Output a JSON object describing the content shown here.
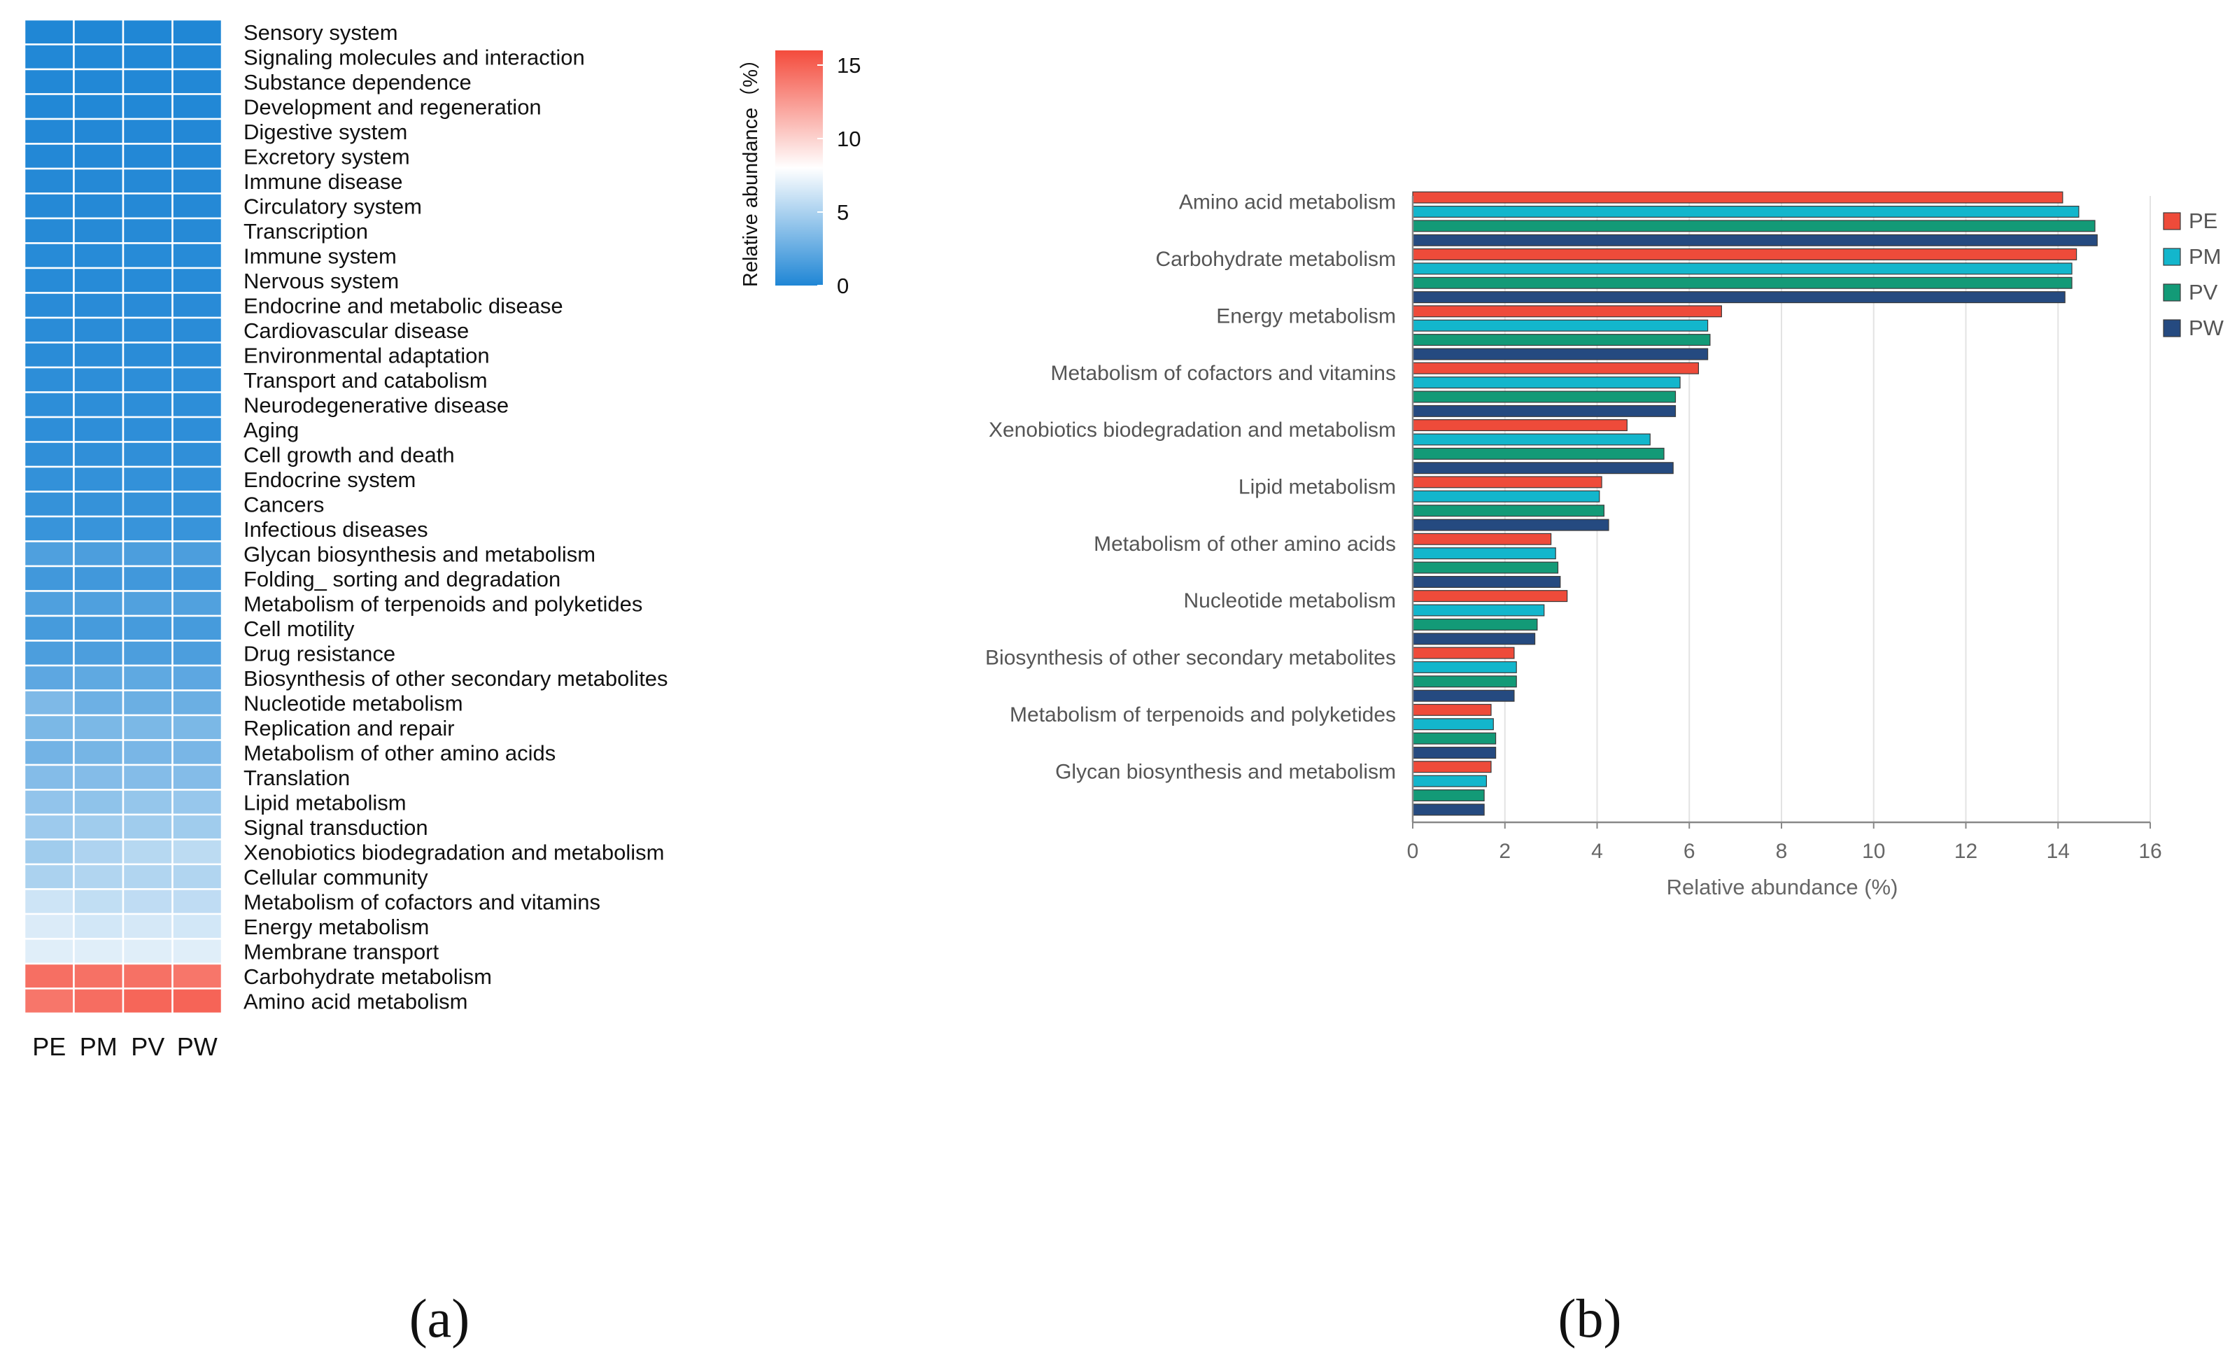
{
  "panels": {
    "a_label": "(a)",
    "b_label": "(b)"
  },
  "chart_data": [
    {
      "type": "heatmap",
      "columns": [
        "PE",
        "PM",
        "PV",
        "PW"
      ],
      "rows": [
        "Sensory system",
        "Signaling molecules and interaction",
        "Substance dependence",
        "Development and regeneration",
        "Digestive system",
        "Excretory system",
        "Immune disease",
        "Circulatory system",
        "Transcription",
        "Immune system",
        "Nervous system",
        "Endocrine and metabolic disease",
        "Cardiovascular disease",
        "Environmental adaptation",
        "Transport and catabolism",
        "Neurodegenerative disease",
        "Aging",
        "Cell growth and death",
        "Endocrine system",
        "Cancers",
        "Infectious diseases",
        "Glycan biosynthesis and metabolism",
        "Folding_ sorting and degradation",
        "Metabolism of terpenoids and polyketides",
        "Cell motility",
        "Drug resistance",
        "Biosynthesis of other secondary metabolites",
        "Nucleotide metabolism",
        "Replication and repair",
        "Metabolism of other amino acids",
        "Translation",
        "Lipid metabolism",
        "Signal transduction",
        "Xenobiotics biodegradation and metabolism",
        "Cellular community",
        "Metabolism of cofactors and vitamins",
        "Energy metabolism",
        "Membrane transport",
        "Carbohydrate metabolism",
        "Amino acid metabolism"
      ],
      "values": [
        [
          0.05,
          0.05,
          0.05,
          0.05
        ],
        [
          0.1,
          0.1,
          0.1,
          0.1
        ],
        [
          0.1,
          0.1,
          0.1,
          0.1
        ],
        [
          0.1,
          0.1,
          0.1,
          0.1
        ],
        [
          0.15,
          0.15,
          0.15,
          0.15
        ],
        [
          0.15,
          0.15,
          0.15,
          0.15
        ],
        [
          0.2,
          0.2,
          0.2,
          0.2
        ],
        [
          0.2,
          0.2,
          0.2,
          0.2
        ],
        [
          0.25,
          0.25,
          0.25,
          0.25
        ],
        [
          0.3,
          0.3,
          0.3,
          0.3
        ],
        [
          0.3,
          0.3,
          0.3,
          0.3
        ],
        [
          0.35,
          0.35,
          0.35,
          0.35
        ],
        [
          0.4,
          0.4,
          0.4,
          0.4
        ],
        [
          0.4,
          0.4,
          0.4,
          0.4
        ],
        [
          0.5,
          0.5,
          0.5,
          0.5
        ],
        [
          0.5,
          0.5,
          0.5,
          0.5
        ],
        [
          0.55,
          0.55,
          0.55,
          0.55
        ],
        [
          0.6,
          0.6,
          0.6,
          0.6
        ],
        [
          0.7,
          0.7,
          0.7,
          0.7
        ],
        [
          0.8,
          0.8,
          0.8,
          0.8
        ],
        [
          0.9,
          0.9,
          0.9,
          0.9
        ],
        [
          1.7,
          1.6,
          1.6,
          1.6
        ],
        [
          1.2,
          1.2,
          1.2,
          1.2
        ],
        [
          1.7,
          1.7,
          1.8,
          1.8
        ],
        [
          1.4,
          1.4,
          1.4,
          1.4
        ],
        [
          1.6,
          1.6,
          1.6,
          1.6
        ],
        [
          2.2,
          2.3,
          2.3,
          2.2
        ],
        [
          3.4,
          2.8,
          2.7,
          2.7
        ],
        [
          3.3,
          3.3,
          3.3,
          3.3
        ],
        [
          3.0,
          3.1,
          3.2,
          3.2
        ],
        [
          3.6,
          3.6,
          3.6,
          3.6
        ],
        [
          4.1,
          4.0,
          4.2,
          4.3
        ],
        [
          4.5,
          4.6,
          4.6,
          4.6
        ],
        [
          4.6,
          5.1,
          5.4,
          5.6
        ],
        [
          5.0,
          5.2,
          5.2,
          5.2
        ],
        [
          6.2,
          5.8,
          5.7,
          5.7
        ],
        [
          6.7,
          6.4,
          6.5,
          6.4
        ],
        [
          6.9,
          6.9,
          6.9,
          6.9
        ],
        [
          14.4,
          14.3,
          14.3,
          14.1
        ],
        [
          14.1,
          14.5,
          14.8,
          14.9
        ]
      ],
      "colorbar": {
        "title": "Relative abundance（%）",
        "range": [
          0,
          16
        ],
        "ticks": [
          0,
          5,
          10,
          15
        ],
        "colors": {
          "low": "#1f86d5",
          "mid": "#ffffff",
          "high": "#f44b3c"
        },
        "mid_value": 8
      }
    },
    {
      "type": "bar",
      "orientation": "horizontal",
      "categories": [
        "Amino acid metabolism",
        "Carbohydrate metabolism",
        "Energy metabolism",
        "Metabolism of cofactors and vitamins",
        "Xenobiotics biodegradation and metabolism",
        "Lipid metabolism",
        "Metabolism of other amino acids",
        "Nucleotide metabolism",
        "Biosynthesis of other secondary metabolites",
        "Metabolism of terpenoids and polyketides",
        "Glycan biosynthesis and metabolism"
      ],
      "series": [
        {
          "name": "PE",
          "color": "#ee4b3a",
          "values": [
            14.1,
            14.4,
            6.7,
            6.2,
            4.65,
            4.1,
            3.0,
            3.35,
            2.2,
            1.7,
            1.7
          ]
        },
        {
          "name": "PM",
          "color": "#13b6cc",
          "values": [
            14.45,
            14.3,
            6.4,
            5.8,
            5.15,
            4.05,
            3.1,
            2.85,
            2.25,
            1.75,
            1.6
          ]
        },
        {
          "name": "PV",
          "color": "#139a77",
          "values": [
            14.8,
            14.3,
            6.45,
            5.7,
            5.45,
            4.15,
            3.15,
            2.7,
            2.25,
            1.8,
            1.55
          ]
        },
        {
          "name": "PW",
          "color": "#254a80",
          "values": [
            14.85,
            14.15,
            6.4,
            5.7,
            5.65,
            4.25,
            3.2,
            2.65,
            2.2,
            1.8,
            1.55
          ]
        }
      ],
      "xlabel": "Relative abundance (%)",
      "xlim": [
        0,
        16
      ],
      "xticks": [
        0,
        2,
        4,
        6,
        8,
        10,
        12,
        14,
        16
      ],
      "grid": true,
      "legend": "right"
    }
  ]
}
